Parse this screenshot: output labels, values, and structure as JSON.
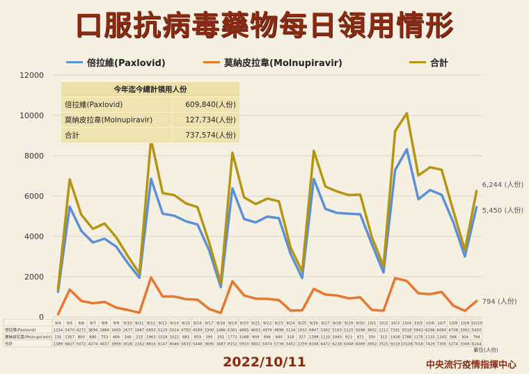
{
  "title": "口服抗病毒藥物每日領用情形",
  "legend": [
    {
      "label": "倍拉維(Paxlovid)",
      "color": "#5b8fd6"
    },
    {
      "label": "莫納皮拉韋(Molnupiravir)",
      "color": "#e8772e"
    },
    {
      "label": "合計",
      "color": "#b59412"
    }
  ],
  "summary_table": {
    "header": "今年迄今總計領用人份",
    "rows": [
      {
        "label": "倍拉維(Paxlovid)",
        "value": "609,840(人份)"
      },
      {
        "label": "莫納皮拉韋(Molnupiravir)",
        "value": "127,734(人份)"
      },
      {
        "label": "合計",
        "value": "737,574(人份)"
      }
    ]
  },
  "end_labels": {
    "total": "6,244 (人份)",
    "paxlovid": "5,450 (人份)",
    "molnupiravir": "794 (人份)"
  },
  "data_table": {
    "row_labels": [
      "倍拉維(Paxlovid)",
      "莫納皮拉韋(Molnupiravir)",
      "合計"
    ],
    "unit_note": "單位(人份)"
  },
  "footer": {
    "date": "2022/10/11",
    "source": "中央流行疫情指揮中心"
  },
  "chart_data": {
    "type": "line",
    "x": [
      "9/4",
      "9/5",
      "9/6",
      "9/7",
      "9/8",
      "9/9",
      "9/10",
      "9/11",
      "9/12",
      "9/13",
      "9/14",
      "9/15",
      "9/16",
      "9/17",
      "9/18",
      "9/19",
      "9/20",
      "9/21",
      "9/22",
      "9/23",
      "9/24",
      "9/25",
      "9/26",
      "9/27",
      "9/28",
      "9/29",
      "9/30",
      "10/1",
      "10/2",
      "10/3",
      "10/4",
      "10/5",
      "10/6",
      "10/7",
      "10/8",
      "10/9",
      "10/10"
    ],
    "ylim": [
      0,
      12000
    ],
    "yticks": [
      0,
      2000,
      4000,
      6000,
      8000,
      10000,
      12000
    ],
    "grid": true,
    "legend_position": "top",
    "series": [
      {
        "name": "倍拉維(Paxlovid)",
        "color": "#5b8fd6",
        "values": [
          1254,
          5470,
          4272,
          3694,
          3884,
          3493,
          2677,
          1947,
          6853,
          5129,
          5024,
          4750,
          4589,
          3300,
          1486,
          6381,
          4865,
          4693,
          4978,
          4899,
          3134,
          1932,
          6847,
          5362,
          5163,
          5125,
          5098,
          3602,
          2212,
          7291,
          8318,
          5843,
          6296,
          6060,
          4708,
          3002,
          5450
        ]
      },
      {
        "name": "莫納皮拉韋(Molnupiravir)",
        "color": "#e8772e",
        "values": [
          135,
          1357,
          800,
          680,
          753,
          466,
          349,
          215,
          1963,
          1018,
          1022,
          883,
          859,
          395,
          201,
          1771,
          1068,
          909,
          896,
          840,
          318,
          327,
          1398,
          1110,
          1065,
          923,
          971,
          350,
          313,
          1928,
          1788,
          1175,
          1133,
          1245,
          566,
          304,
          794
        ]
      },
      {
        "name": "合計",
        "color": "#b59412",
        "values": [
          1389,
          6827,
          5072,
          4374,
          4637,
          3959,
          3026,
          2162,
          8816,
          6147,
          6046,
          5633,
          5448,
          3695,
          1687,
          8152,
          5933,
          5602,
          5874,
          5739,
          3452,
          2259,
          8246,
          6472,
          6228,
          6048,
          6069,
          3952,
          2525,
          9219,
          10106,
          7018,
          7429,
          7305,
          5274,
          3306,
          6244
        ]
      }
    ]
  }
}
